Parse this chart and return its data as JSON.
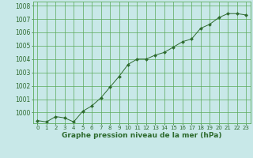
{
  "x": [
    0,
    1,
    2,
    3,
    4,
    5,
    6,
    7,
    8,
    9,
    10,
    11,
    12,
    13,
    14,
    15,
    16,
    17,
    18,
    19,
    20,
    21,
    22,
    23
  ],
  "y": [
    999.4,
    999.3,
    999.7,
    999.6,
    999.3,
    1000.1,
    1000.5,
    1001.1,
    1001.9,
    1002.7,
    1003.6,
    1004.0,
    1004.0,
    1004.3,
    1004.5,
    1004.9,
    1005.3,
    1005.5,
    1006.3,
    1006.6,
    1007.1,
    1007.4,
    1007.4,
    1007.3
  ],
  "line_color": "#2d6a2d",
  "marker_color": "#2d6a2d",
  "bg_color": "#c8e8e8",
  "grid_color": "#5aaa5a",
  "title": "Graphe pression niveau de la mer (hPa)",
  "title_fontsize": 6.5,
  "ylabel_ticks": [
    1000,
    1001,
    1002,
    1003,
    1004,
    1005,
    1006,
    1007,
    1008
  ],
  "xlim": [
    -0.5,
    23.5
  ],
  "ylim": [
    999.2,
    1008.3
  ],
  "ytick_fontsize": 5.5,
  "xtick_fontsize": 5.0
}
